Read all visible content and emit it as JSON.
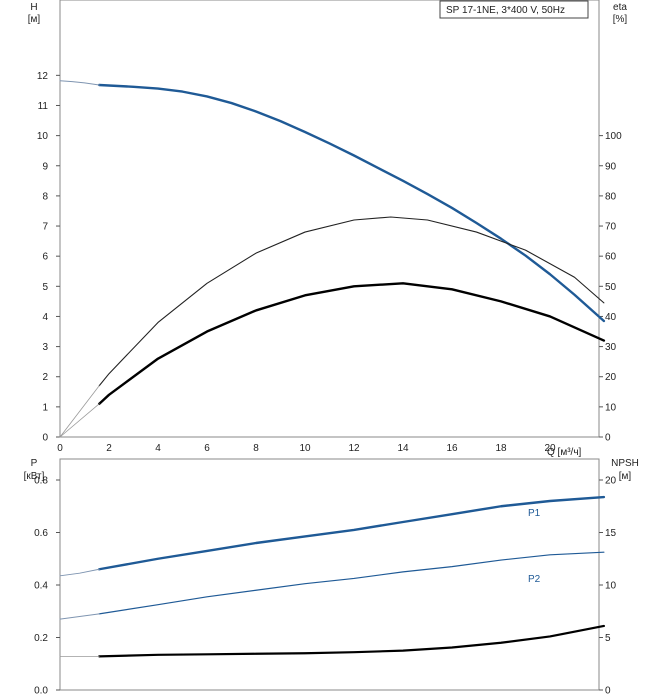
{
  "chart_data": [
    {
      "type": "line",
      "legend": "SP 17-1NE, 3*400 V, 50Hz",
      "xlabel": "Q [м³/ч]",
      "xlim": [
        0,
        22
      ],
      "xticks": [
        "0",
        "2",
        "4",
        "6",
        "8",
        "10",
        "12",
        "14",
        "16",
        "18",
        "20"
      ],
      "left_axis": {
        "label_line1": "H",
        "label_line2": "[м]",
        "ylim": [
          0,
          14.5
        ],
        "ticks": [
          "0",
          "1",
          "2",
          "3",
          "4",
          "5",
          "6",
          "7",
          "8",
          "9",
          "10",
          "11",
          "12"
        ]
      },
      "right_axis": {
        "label_line1": "eta",
        "label_line2": "[%]",
        "ylim": [
          0,
          145
        ],
        "ticks": [
          "0",
          "10",
          "20",
          "30",
          "40",
          "50",
          "60",
          "70",
          "80",
          "90",
          "100"
        ]
      },
      "series": [
        {
          "axis": "left",
          "color": "#1f5a96",
          "width": 2.4,
          "x": [
            1.6,
            3,
            4,
            5,
            6,
            7,
            8,
            9,
            10,
            11,
            12,
            13,
            14,
            15,
            16,
            17,
            18,
            19,
            20,
            21,
            22.2
          ],
          "y": [
            11.68,
            11.62,
            11.56,
            11.46,
            11.3,
            11.08,
            10.8,
            10.48,
            10.12,
            9.74,
            9.34,
            8.92,
            8.5,
            8.06,
            7.6,
            7.1,
            6.58,
            6.02,
            5.4,
            4.72,
            3.85
          ]
        },
        {
          "axis": "left",
          "color": "#7f95b1",
          "width": 1,
          "x": [
            0,
            0.5,
            1,
            1.6
          ],
          "y": [
            11.82,
            11.79,
            11.75,
            11.68
          ]
        },
        {
          "axis": "right",
          "color": "#222222",
          "width": 1.1,
          "x": [
            1.6,
            2,
            4,
            6,
            8,
            10,
            12,
            13.5,
            15,
            17,
            19,
            21,
            22.2
          ],
          "y": [
            17,
            21,
            38,
            51,
            61,
            68,
            72,
            73,
            72,
            68,
            62,
            53,
            44.5
          ]
        },
        {
          "axis": "right",
          "color": "#9a9a9a",
          "width": 0.8,
          "x": [
            0,
            1.6
          ],
          "y": [
            0,
            17
          ]
        },
        {
          "axis": "right",
          "color": "#000000",
          "width": 2.4,
          "x": [
            1.6,
            2,
            4,
            6,
            8,
            10,
            12,
            14,
            16,
            18,
            20,
            22.2
          ],
          "y": [
            11,
            14,
            26,
            35,
            42,
            47,
            50,
            51,
            49,
            45,
            40,
            32
          ]
        },
        {
          "axis": "right",
          "color": "#9a9a9a",
          "width": 0.8,
          "x": [
            0,
            1.6
          ],
          "y": [
            0,
            11
          ]
        }
      ]
    },
    {
      "type": "line",
      "xlim": [
        0,
        22
      ],
      "left_axis": {
        "label_line1": "P",
        "label_line2": "[кВт]",
        "ylim": [
          0,
          0.88
        ],
        "ticks": [
          "0.0",
          "0.2",
          "0.4",
          "0.6",
          "0.8"
        ]
      },
      "right_axis": {
        "label_line1": "NPSH",
        "label_line2": "[м]",
        "ylim": [
          0,
          22
        ],
        "ticks": [
          "0",
          "5",
          "10",
          "15",
          "20"
        ]
      },
      "series": [
        {
          "name": "P1",
          "axis": "left",
          "color": "#1f5a96",
          "width": 2.4,
          "x": [
            1.6,
            4,
            6,
            8,
            10,
            12,
            14,
            16,
            18,
            20,
            22.2
          ],
          "y": [
            0.46,
            0.5,
            0.53,
            0.56,
            0.585,
            0.61,
            0.64,
            0.67,
            0.7,
            0.72,
            0.735
          ]
        },
        {
          "axis": "left",
          "color": "#7f95b1",
          "width": 1,
          "x": [
            0,
            0.8,
            1.6
          ],
          "y": [
            0.435,
            0.445,
            0.46
          ]
        },
        {
          "name": "P2",
          "axis": "left",
          "color": "#1f5a96",
          "width": 1.2,
          "x": [
            1.6,
            4,
            6,
            8,
            10,
            12,
            14,
            16,
            18,
            20,
            22.2
          ],
          "y": [
            0.29,
            0.325,
            0.355,
            0.38,
            0.405,
            0.425,
            0.45,
            0.47,
            0.495,
            0.515,
            0.525
          ]
        },
        {
          "axis": "left",
          "color": "#7f95b1",
          "width": 1,
          "x": [
            0,
            0.8,
            1.6
          ],
          "y": [
            0.27,
            0.28,
            0.29
          ]
        },
        {
          "axis": "right",
          "color": "#000000",
          "width": 2.2,
          "x": [
            1.6,
            4,
            6,
            8,
            10,
            12,
            14,
            16,
            18,
            20,
            22.2
          ],
          "y": [
            3.2,
            3.35,
            3.4,
            3.45,
            3.5,
            3.6,
            3.75,
            4.05,
            4.5,
            5.1,
            6.1
          ]
        },
        {
          "axis": "right",
          "color": "#9a9a9a",
          "width": 0.8,
          "x": [
            0,
            1.6
          ],
          "y": [
            3.2,
            3.2
          ]
        }
      ]
    }
  ]
}
